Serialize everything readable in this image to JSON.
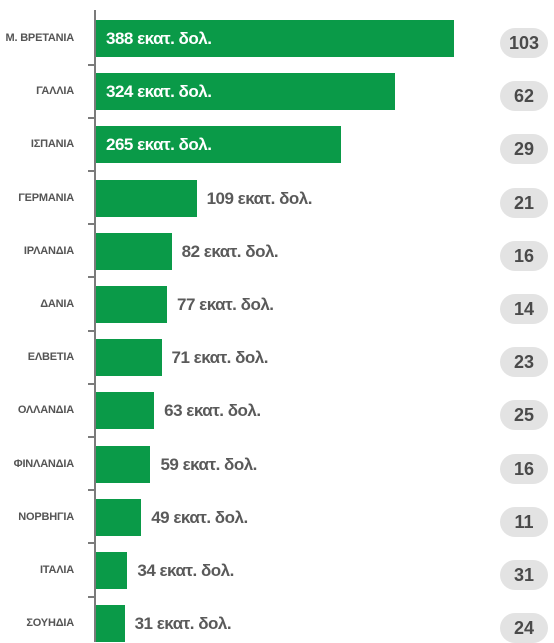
{
  "chart_data": {
    "type": "bar",
    "orientation": "horizontal",
    "unit_suffix": " εκατ. δολ.",
    "colors": {
      "bar": "#0a9a48",
      "pill_bg": "#e3e3e3",
      "label_text": "#555555"
    },
    "rows": [
      {
        "country": "Μ. ΒΡΕΤΑΝΙΑ",
        "value": 388,
        "label": "388 εκατ. δολ.",
        "rank": "103"
      },
      {
        "country": "ΓΑΛΛΙΑ",
        "value": 324,
        "label": "324 εκατ. δολ.",
        "rank": "62"
      },
      {
        "country": "ΙΣΠΑΝΙΑ",
        "value": 265,
        "label": "265 εκατ. δολ.",
        "rank": "29"
      },
      {
        "country": "ΓΕΡΜΑΝΙΑ",
        "value": 109,
        "label": "109 εκατ. δολ.",
        "rank": "21"
      },
      {
        "country": "ΙΡΛΑΝΔΙΑ",
        "value": 82,
        "label": "82 εκατ. δολ.",
        "rank": "16"
      },
      {
        "country": "ΔΑΝΙΑ",
        "value": 77,
        "label": "77 εκατ. δολ.",
        "rank": "14"
      },
      {
        "country": "ΕΛΒΕΤΙΑ",
        "value": 71,
        "label": "71 εκατ. δολ.",
        "rank": "23"
      },
      {
        "country": "ΟΛΛΑΝΔΙΑ",
        "value": 63,
        "label": "63 εκατ. δολ.",
        "rank": "25"
      },
      {
        "country": "ΦΙΝΛΑΝΔΙΑ",
        "value": 59,
        "label": "59 εκατ. δολ.",
        "rank": "16"
      },
      {
        "country": "ΝΟΡΒΗΓΙΑ",
        "value": 49,
        "label": "49 εκατ. δολ.",
        "rank": "11"
      },
      {
        "country": "ΙΤΑΛΙΑ",
        "value": 34,
        "label": "34 εκατ. δολ.",
        "rank": "31"
      },
      {
        "country": "ΣΟΥΗΔΙΑ",
        "value": 31,
        "label": "31 εκατ. δολ.",
        "rank": "24"
      }
    ]
  }
}
